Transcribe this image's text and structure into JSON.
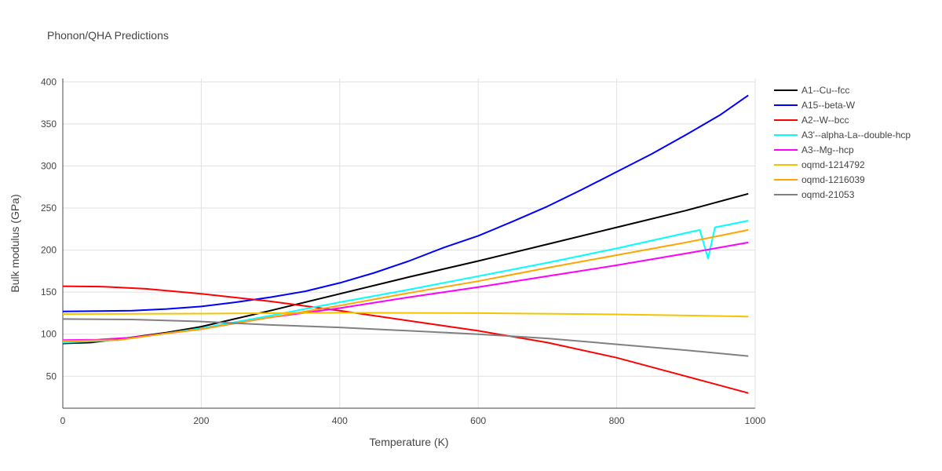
{
  "chart_data": {
    "type": "line",
    "title": "Phonon/QHA Predictions",
    "xlabel": "Temperature (K)",
    "ylabel": "Bulk modulus (GPa)",
    "xlim": [
      0,
      1000
    ],
    "ylim": [
      12,
      404
    ],
    "xticks": [
      0,
      200,
      400,
      600,
      800,
      1000
    ],
    "yticks": [
      50,
      100,
      150,
      200,
      250,
      300,
      350,
      400
    ],
    "grid": true,
    "legend_position": "top-right",
    "series": [
      {
        "name": "A1--Cu--fcc",
        "color": "#000000",
        "x": [
          0,
          40,
          80,
          150,
          200,
          300,
          400,
          500,
          600,
          700,
          800,
          900,
          990
        ],
        "y": [
          89,
          90,
          94,
          102,
          109,
          128,
          148,
          168,
          187,
          207,
          227,
          247,
          267
        ]
      },
      {
        "name": "A15--beta-W",
        "color": "#0000ff",
        "x": [
          0,
          50,
          100,
          150,
          200,
          250,
          300,
          350,
          400,
          450,
          500,
          550,
          600,
          650,
          700,
          750,
          800,
          850,
          900,
          950,
          990
        ],
        "y": [
          127,
          127.5,
          128,
          130,
          133,
          138,
          144,
          151,
          161,
          173,
          187,
          203,
          217,
          234,
          252,
          272,
          293,
          314,
          337,
          361,
          384
        ]
      },
      {
        "name": "A2--W--bcc",
        "color": "#ff0000",
        "x": [
          0,
          60,
          120,
          200,
          300,
          400,
          500,
          600,
          700,
          800,
          900,
          990
        ],
        "y": [
          157,
          156.5,
          154,
          148,
          139,
          128,
          116,
          104,
          90,
          72,
          50,
          30
        ]
      },
      {
        "name": "A3'--alpha-La--double-hcp",
        "color": "#00ffff",
        "x": [
          0,
          80,
          150,
          200,
          300,
          400,
          500,
          600,
          700,
          800,
          920,
          932,
          942,
          990
        ],
        "y": [
          90,
          93,
          101,
          107,
          122,
          138,
          153,
          169,
          185,
          202,
          224,
          190,
          227,
          235
        ]
      },
      {
        "name": "A3--Mg--hcp",
        "color": "#ff00ff",
        "x": [
          0,
          50,
          100,
          150,
          200,
          300,
          400,
          500,
          600,
          700,
          800,
          900,
          990
        ],
        "y": [
          93,
          93.5,
          96,
          101,
          106,
          120,
          131,
          144,
          156,
          169,
          182,
          196,
          209
        ]
      },
      {
        "name": "oqmd-1214792",
        "color": "#f5c400",
        "x": [
          0,
          200,
          400,
          600,
          800,
          990
        ],
        "y": [
          124,
          124.5,
          125.5,
          125,
          123.5,
          121
        ]
      },
      {
        "name": "oqmd-1216039",
        "color": "#ffa500",
        "x": [
          0,
          80,
          150,
          200,
          300,
          400,
          500,
          600,
          700,
          800,
          900,
          990
        ],
        "y": [
          92,
          93,
          101,
          106,
          120,
          134,
          149,
          163,
          179,
          194,
          209,
          224
        ]
      },
      {
        "name": "oqmd-21053",
        "color": "#808080",
        "x": [
          0,
          100,
          200,
          300,
          400,
          500,
          600,
          700,
          800,
          900,
          990
        ],
        "y": [
          118,
          117.5,
          115,
          111,
          108,
          104,
          100,
          95,
          88,
          81,
          74
        ]
      }
    ]
  }
}
